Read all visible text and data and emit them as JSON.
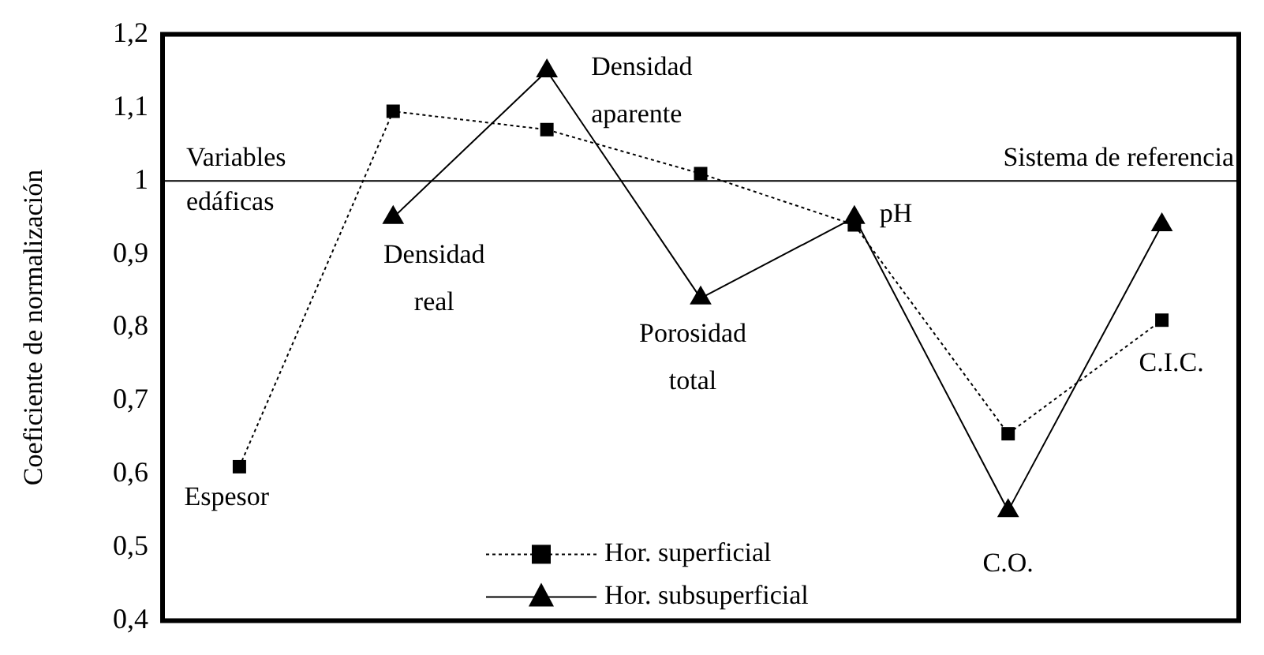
{
  "chart_data": {
    "type": "line",
    "ylabel": "Coeficiente de normalización",
    "categories": [
      null,
      null,
      null,
      null,
      null,
      null,
      null
    ],
    "series": [
      {
        "name": "Hor. superficial",
        "color": "#000000",
        "marker": "square",
        "line_style": "dotted",
        "values": [
          0.61,
          1.095,
          1.07,
          1.01,
          0.94,
          0.655,
          0.81
        ]
      },
      {
        "name": "Hor. subsuperficial",
        "color": "#000000",
        "marker": "triangle",
        "line_style": "solid",
        "values": [
          null,
          0.95,
          1.15,
          0.84,
          0.95,
          0.55,
          0.94
        ]
      }
    ],
    "ylim": [
      0.4,
      1.2
    ],
    "yticks": [
      {
        "value": 0.4,
        "label": "0,4"
      },
      {
        "value": 0.5,
        "label": "0,5"
      },
      {
        "value": 0.6,
        "label": "0,6"
      },
      {
        "value": 0.7,
        "label": "0,7"
      },
      {
        "value": 0.8,
        "label": "0,8"
      },
      {
        "value": 0.9,
        "label": "0,9"
      },
      1,
      {
        "value": 1.1,
        "label": "1,1"
      },
      {
        "value": 1.2,
        "label": "1,2"
      }
    ],
    "ref_lines": [
      {
        "axis": "y",
        "value": 1,
        "label": "Sistema de referencia",
        "color": "#000000"
      }
    ],
    "annotations": [
      "Espesor",
      "Densidad real",
      "Densidad aparente",
      "Porosidad total",
      "pH",
      "C.O.",
      "C.I.C.",
      "Variables edáficas"
    ],
    "tick_labels": "y",
    "grid": false,
    "legend": "bottom"
  }
}
